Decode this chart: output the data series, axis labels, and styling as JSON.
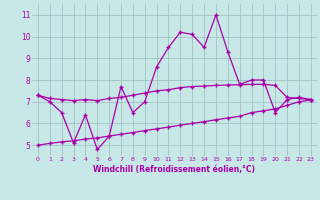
{
  "x": [
    0,
    1,
    2,
    3,
    4,
    5,
    6,
    7,
    8,
    9,
    10,
    11,
    12,
    13,
    14,
    15,
    16,
    17,
    18,
    19,
    20,
    21,
    22,
    23
  ],
  "line1": [
    7.3,
    7.0,
    6.5,
    5.1,
    6.4,
    4.8,
    5.4,
    7.7,
    6.5,
    7.0,
    8.6,
    9.5,
    10.2,
    10.1,
    9.5,
    11.0,
    9.3,
    7.8,
    8.0,
    8.0,
    6.5,
    7.1,
    7.2,
    7.1
  ],
  "line2": [
    7.3,
    7.15,
    7.1,
    7.05,
    7.1,
    7.05,
    7.15,
    7.2,
    7.3,
    7.4,
    7.5,
    7.55,
    7.65,
    7.7,
    7.72,
    7.75,
    7.77,
    7.78,
    7.8,
    7.8,
    7.75,
    7.2,
    7.15,
    7.1
  ],
  "line3": [
    5.0,
    5.08,
    5.15,
    5.2,
    5.28,
    5.33,
    5.42,
    5.5,
    5.58,
    5.67,
    5.75,
    5.83,
    5.92,
    6.0,
    6.08,
    6.17,
    6.25,
    6.33,
    6.5,
    6.58,
    6.67,
    6.83,
    7.0,
    7.08
  ],
  "color": "#aa00aa",
  "bg_color": "#c8e8e8",
  "grid_color": "#99bbbb",
  "xlabel": "Windchill (Refroidissement éolien,°C)",
  "xlim": [
    -0.5,
    23.5
  ],
  "ylim": [
    4.5,
    11.5
  ],
  "yticks": [
    5,
    6,
    7,
    8,
    9,
    10,
    11
  ],
  "xticks": [
    0,
    1,
    2,
    3,
    4,
    5,
    6,
    7,
    8,
    9,
    10,
    11,
    12,
    13,
    14,
    15,
    16,
    17,
    18,
    19,
    20,
    21,
    22,
    23
  ],
  "marker": "+",
  "markersize": 3.5,
  "linewidth": 0.9
}
